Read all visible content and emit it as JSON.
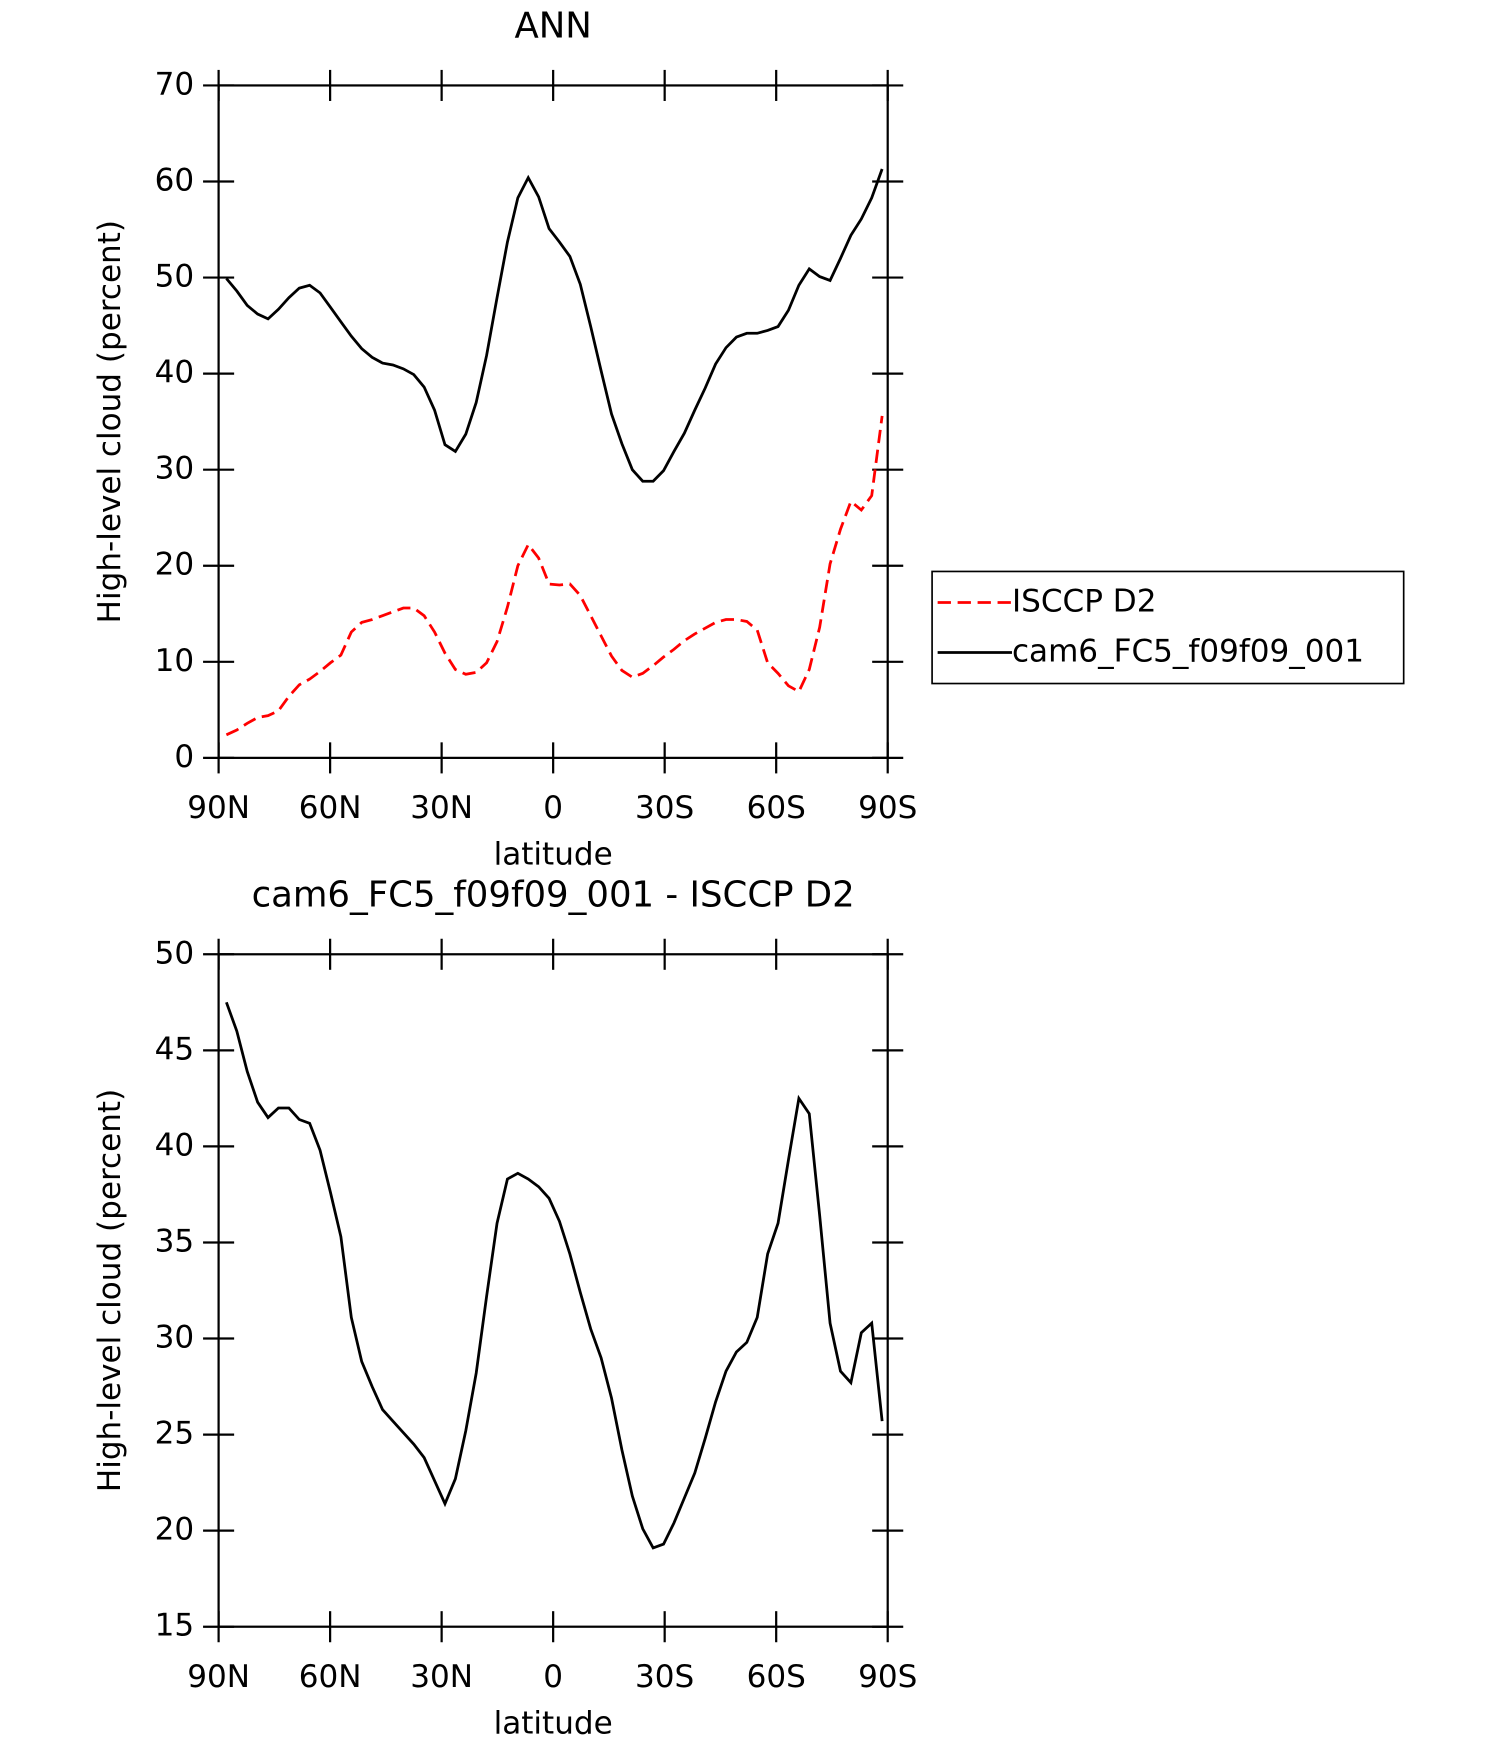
{
  "chart_data": [
    {
      "type": "line",
      "title": "ANN",
      "xlabel": "latitude",
      "ylabel": "High-level cloud (percent)",
      "xlim": [
        90,
        -90
      ],
      "ylim": [
        0,
        70
      ],
      "xticks": [
        {
          "value": 90,
          "label": "90N"
        },
        {
          "value": 60,
          "label": "60N"
        },
        {
          "value": 30,
          "label": "30N"
        },
        0,
        {
          "value": -30,
          "label": "30S"
        },
        {
          "value": -60,
          "label": "60S"
        },
        {
          "value": -90,
          "label": "90S"
        }
      ],
      "yticks": [
        0,
        10,
        20,
        30,
        40,
        50,
        60,
        70
      ],
      "legend": "right",
      "x": [
        87.9,
        85.1,
        82.3,
        79.5,
        76.7,
        73.9,
        71.1,
        68.3,
        65.5,
        62.7,
        59.9,
        57.1,
        54.3,
        51.5,
        48.7,
        45.9,
        43.1,
        40.3,
        37.5,
        34.7,
        31.9,
        29.1,
        26.3,
        23.5,
        20.7,
        17.9,
        15.1,
        12.3,
        9.5,
        6.7,
        3.9,
        1.1,
        -1.7,
        -4.5,
        -7.3,
        -10.1,
        -12.9,
        -15.7,
        -18.5,
        -21.3,
        -24.1,
        -26.9,
        -29.7,
        -32.5,
        -35.3,
        -38.1,
        -40.9,
        -43.7,
        -46.5,
        -49.3,
        -52.1,
        -54.9,
        -57.7,
        -60.5,
        -63.3,
        -66.1,
        -68.9,
        -71.7,
        -74.5,
        -77.3,
        -80.1,
        -82.9,
        -85.7,
        -88.5
      ],
      "series": [
        {
          "name": "ISCCP D2",
          "color": "#ff0000",
          "linestyle": "dashed",
          "values": [
            2.4,
            2.9,
            3.6,
            4.2,
            4.4,
            4.9,
            6.4,
            7.6,
            8.2,
            9.0,
            9.9,
            10.7,
            13.1,
            14.1,
            14.4,
            14.8,
            15.2,
            15.6,
            15.6,
            14.8,
            13.1,
            10.9,
            9.2,
            8.7,
            8.9,
            9.9,
            12.1,
            15.7,
            20.0,
            22.2,
            20.8,
            18.1,
            18.0,
            18.1,
            16.9,
            14.8,
            12.7,
            10.6,
            9.1,
            8.4,
            8.8,
            9.6,
            10.5,
            11.3,
            12.2,
            12.9,
            13.5,
            14.1,
            14.4,
            14.4,
            14.2,
            13.3,
            9.9,
            8.8,
            7.5,
            6.9,
            9.2,
            13.6,
            20.2,
            23.8,
            26.7,
            25.8,
            27.3,
            35.6
          ]
        },
        {
          "name": "cam6_FC5_f09f09_001",
          "color": "#000000",
          "linestyle": "solid",
          "values": [
            49.9,
            48.6,
            47.1,
            46.2,
            45.7,
            46.7,
            47.9,
            48.9,
            49.2,
            48.4,
            46.9,
            45.4,
            43.9,
            42.6,
            41.7,
            41.1,
            40.9,
            40.5,
            39.9,
            38.6,
            36.2,
            32.6,
            31.9,
            33.7,
            37.0,
            41.9,
            47.9,
            53.7,
            58.3,
            60.4,
            58.4,
            55.1,
            53.7,
            52.2,
            49.3,
            44.9,
            40.3,
            35.8,
            32.7,
            30.0,
            28.8,
            28.8,
            29.9,
            31.9,
            33.8,
            36.2,
            38.5,
            41.0,
            42.7,
            43.8,
            44.2,
            44.2,
            44.5,
            44.9,
            46.6,
            49.2,
            50.9,
            50.1,
            49.7,
            52.0,
            54.4,
            56.1,
            58.3,
            61.3
          ]
        }
      ]
    },
    {
      "type": "line",
      "title": "cam6_FC5_f09f09_001 - ISCCP D2",
      "xlabel": "latitude",
      "ylabel": "High-level cloud (percent)",
      "xlim": [
        90,
        -90
      ],
      "ylim": [
        15,
        50
      ],
      "xticks": [
        {
          "value": 90,
          "label": "90N"
        },
        {
          "value": 60,
          "label": "60N"
        },
        {
          "value": 30,
          "label": "30N"
        },
        0,
        {
          "value": -30,
          "label": "30S"
        },
        {
          "value": -60,
          "label": "60S"
        },
        {
          "value": -90,
          "label": "90S"
        }
      ],
      "yticks": [
        15,
        20,
        25,
        30,
        35,
        40,
        45,
        50
      ],
      "x": [
        87.9,
        85.1,
        82.3,
        79.5,
        76.7,
        73.9,
        71.1,
        68.3,
        65.5,
        62.7,
        59.9,
        57.1,
        54.3,
        51.5,
        48.7,
        45.9,
        43.1,
        40.3,
        37.5,
        34.7,
        31.9,
        29.1,
        26.3,
        23.5,
        20.7,
        17.9,
        15.1,
        12.3,
        9.5,
        6.7,
        3.9,
        1.1,
        -1.7,
        -4.5,
        -7.3,
        -10.1,
        -12.9,
        -15.7,
        -18.5,
        -21.3,
        -24.1,
        -26.9,
        -29.7,
        -32.5,
        -35.3,
        -38.1,
        -40.9,
        -43.7,
        -46.5,
        -49.3,
        -52.1,
        -54.9,
        -57.7,
        -60.5,
        -63.3,
        -66.1,
        -68.9,
        -71.7,
        -74.5,
        -77.3,
        -80.1,
        -82.9,
        -85.7,
        -88.5
      ],
      "series": [
        {
          "color": "#000000",
          "linestyle": "solid",
          "values": [
            47.5,
            46.0,
            43.9,
            42.3,
            41.5,
            42.0,
            42.0,
            41.4,
            41.2,
            39.8,
            37.6,
            35.3,
            31.1,
            28.8,
            27.5,
            26.3,
            25.7,
            25.1,
            24.5,
            23.8,
            22.6,
            21.4,
            22.7,
            25.2,
            28.2,
            32.2,
            36.0,
            38.3,
            38.6,
            38.3,
            37.9,
            37.3,
            36.1,
            34.4,
            32.4,
            30.5,
            29.0,
            26.9,
            24.2,
            21.8,
            20.1,
            19.1,
            19.3,
            20.4,
            21.7,
            23.0,
            24.8,
            26.7,
            28.3,
            29.3,
            29.8,
            31.1,
            34.4,
            36.0,
            39.3,
            42.5,
            41.7,
            36.4,
            30.8,
            28.3,
            27.7,
            30.3,
            30.8,
            25.7
          ]
        }
      ]
    }
  ]
}
